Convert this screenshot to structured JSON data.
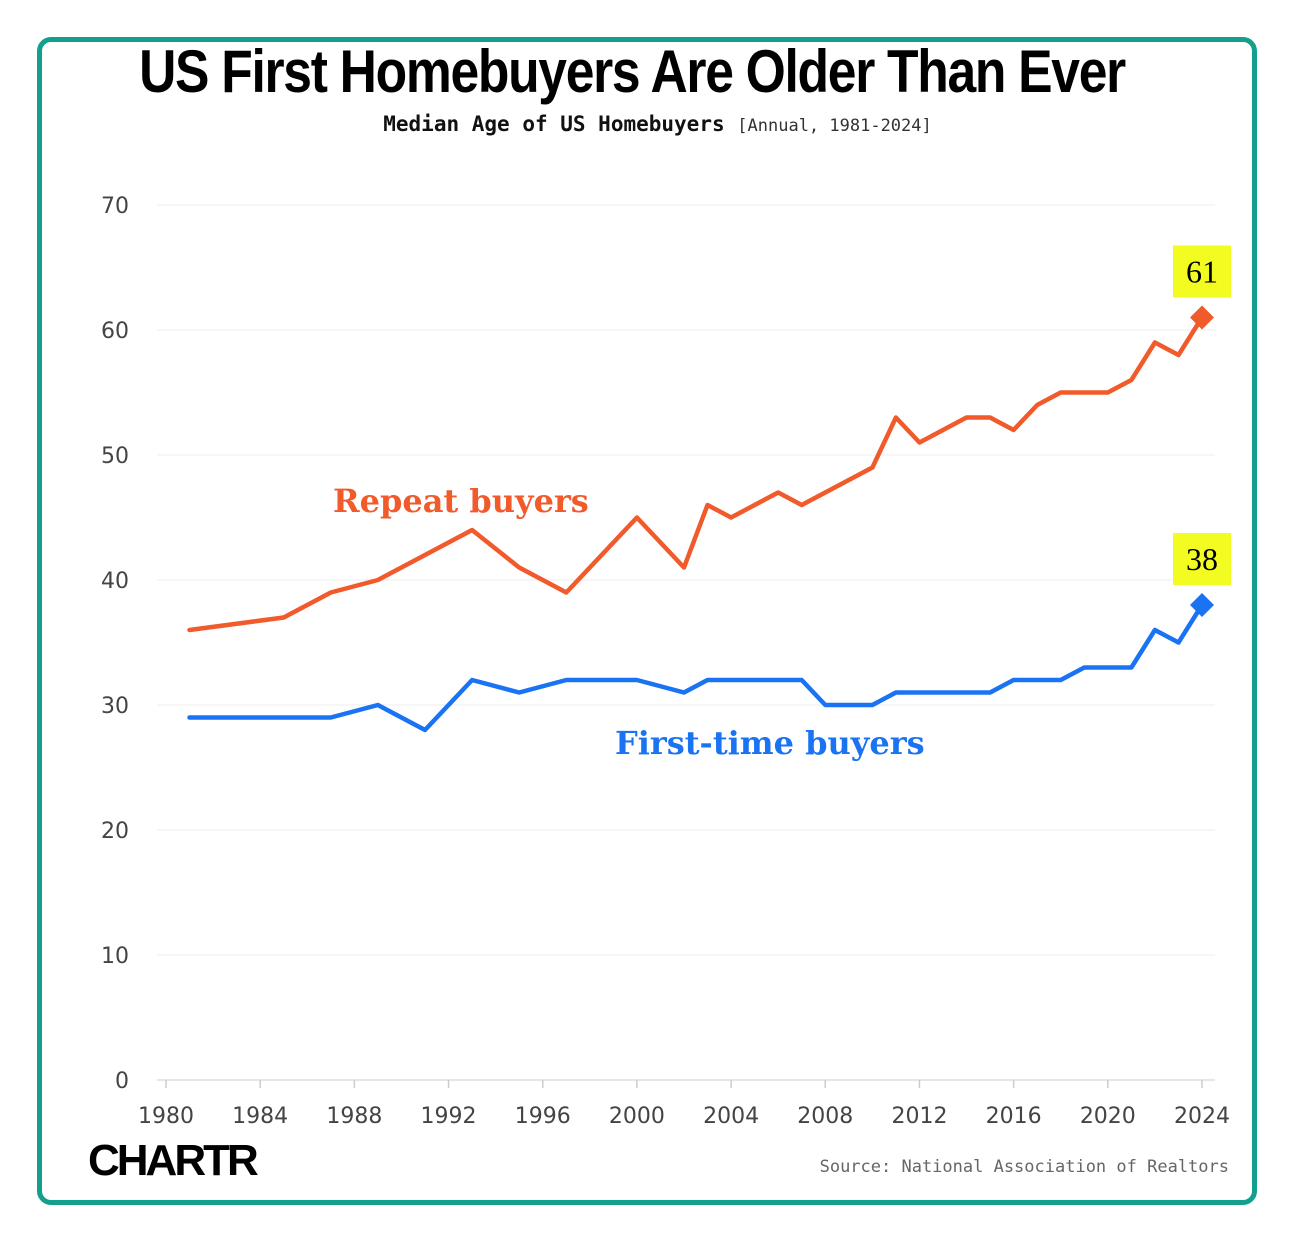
{
  "title": "US First Homebuyers Are Older Than Ever",
  "subtitle": "Median Age of US Homebuyers",
  "subtitle_note": "[Annual, 1981-2024]",
  "brand": "CHARTR",
  "source": "Source: National Association of Realtors",
  "colors": {
    "repeat": "#f15a2b",
    "first": "#1a73f2",
    "frame": "#12a08c",
    "callout": "#f3fc20"
  },
  "chart_data": {
    "type": "line",
    "title": "US First Homebuyers Are Older Than Ever",
    "subtitle": "Median Age of US Homebuyers [Annual, 1981-2024]",
    "xlabel": "",
    "ylabel": "",
    "xlim": [
      1979.8,
      1980.2
    ],
    "x_ticks": [
      1980,
      1984,
      1988,
      1992,
      1996,
      2000,
      2004,
      2008,
      2012,
      2016,
      2020,
      2024
    ],
    "ylim": [
      0,
      70
    ],
    "y_ticks": [
      0,
      10,
      20,
      30,
      40,
      50,
      60,
      70
    ],
    "grid": true,
    "legend": "inline labels",
    "series": [
      {
        "name": "Repeat buyers",
        "color": "#f15a2b",
        "points": [
          [
            1981,
            36
          ],
          [
            1985,
            37
          ],
          [
            1987,
            39
          ],
          [
            1989,
            40
          ],
          [
            1991,
            42
          ],
          [
            1993,
            44
          ],
          [
            1995,
            41
          ],
          [
            1997,
            39
          ],
          [
            2000,
            45
          ],
          [
            2002,
            41
          ],
          [
            2003,
            46
          ],
          [
            2004,
            45
          ],
          [
            2006,
            47
          ],
          [
            2007,
            46
          ],
          [
            2010,
            49
          ],
          [
            2011,
            53
          ],
          [
            2012,
            51
          ],
          [
            2014,
            53
          ],
          [
            2015,
            53
          ],
          [
            2016,
            52
          ],
          [
            2017,
            54
          ],
          [
            2018,
            55
          ],
          [
            2019,
            55
          ],
          [
            2020,
            55
          ],
          [
            2021,
            56
          ],
          [
            2022,
            59
          ],
          [
            2023,
            58
          ],
          [
            2024,
            61
          ]
        ],
        "end_label": "61"
      },
      {
        "name": "First-time buyers",
        "color": "#1a73f2",
        "points": [
          [
            1981,
            29
          ],
          [
            1985,
            29
          ],
          [
            1987,
            29
          ],
          [
            1989,
            30
          ],
          [
            1991,
            28
          ],
          [
            1993,
            32
          ],
          [
            1995,
            31
          ],
          [
            1997,
            32
          ],
          [
            2000,
            32
          ],
          [
            2002,
            31
          ],
          [
            2003,
            32
          ],
          [
            2004,
            32
          ],
          [
            2006,
            32
          ],
          [
            2007,
            32
          ],
          [
            2008,
            30
          ],
          [
            2010,
            30
          ],
          [
            2011,
            31
          ],
          [
            2012,
            31
          ],
          [
            2014,
            31
          ],
          [
            2015,
            31
          ],
          [
            2016,
            32
          ],
          [
            2017,
            32
          ],
          [
            2018,
            32
          ],
          [
            2019,
            33
          ],
          [
            2020,
            33
          ],
          [
            2021,
            33
          ],
          [
            2022,
            36
          ],
          [
            2023,
            35
          ],
          [
            2024,
            38
          ]
        ],
        "end_label": "38"
      }
    ]
  }
}
